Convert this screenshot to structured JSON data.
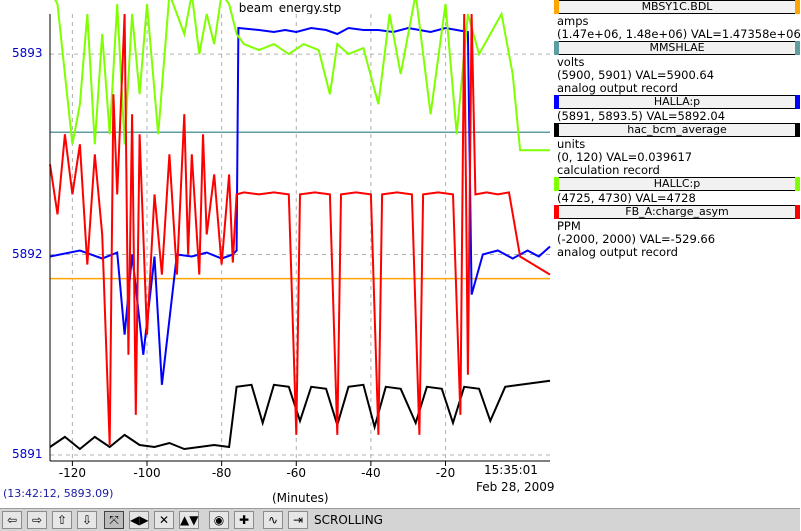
{
  "window": {
    "title": "beam_energy.stp"
  },
  "chart_data": {
    "type": "line",
    "title": "beam_energy.stp",
    "xlabel": "(Minutes)",
    "ylabel": "",
    "x_ticks": [
      "-120",
      "-100",
      "-80",
      "-60",
      "-40",
      "-20"
    ],
    "xlim": [
      -126,
      8
    ],
    "y_ticks": [
      "5891",
      "5892",
      "5893"
    ],
    "ylim": [
      5890.97,
      5893.2
    ],
    "end_time": "15:35:01",
    "end_date": "Feb 28, 2009",
    "grid": true,
    "legend_placement": "right",
    "series": [
      {
        "name": "MBSY1C.BDL",
        "color": "#ffa500",
        "units": "amps",
        "range": "(1.47e+06, 1.48e+06)",
        "value": "1.47358e+06",
        "points": [
          [
            -126,
            5891.88
          ],
          [
            8,
            5891.88
          ]
        ]
      },
      {
        "name": "MMSHLAE",
        "color": "#5f9ea0",
        "units": "volts",
        "range": "(5900, 5901)",
        "value": "5900.64",
        "points": [
          [
            -126,
            5892.61
          ],
          [
            8,
            5892.61
          ]
        ]
      },
      {
        "name": "HALLA:p",
        "color": "#0000ff",
        "units": "",
        "range": "(5891, 5893.5)",
        "value": "5892.04",
        "points": [
          [
            -126,
            5891.99
          ],
          [
            -118,
            5892.02
          ],
          [
            -112,
            5891.98
          ],
          [
            -108,
            5892.01
          ],
          [
            -106,
            5891.6
          ],
          [
            -104,
            5892.0
          ],
          [
            -101,
            5891.5
          ],
          [
            -98,
            5891.99
          ],
          [
            -96,
            5891.35
          ],
          [
            -92,
            5892.0
          ],
          [
            -88,
            5891.99
          ],
          [
            -84,
            5892.01
          ],
          [
            -80,
            5891.98
          ],
          [
            -77,
            5892.0
          ],
          [
            -76,
            5892.02
          ],
          [
            -75.5,
            5893.13
          ],
          [
            -70,
            5893.12
          ],
          [
            -66,
            5893.11
          ],
          [
            -63,
            5893.12
          ],
          [
            -60,
            5893.11
          ],
          [
            -56,
            5893.13
          ],
          [
            -52,
            5893.12
          ],
          [
            -49,
            5893.1
          ],
          [
            -46,
            5893.13
          ],
          [
            -42,
            5893.12
          ],
          [
            -38,
            5893.12
          ],
          [
            -34,
            5893.11
          ],
          [
            -30,
            5893.13
          ],
          [
            -27,
            5893.12
          ],
          [
            -24,
            5893.11
          ],
          [
            -22,
            5893.12
          ],
          [
            -20,
            5893.13
          ],
          [
            -17,
            5893.12
          ],
          [
            -14,
            5893.11
          ],
          [
            -13,
            5891.8
          ],
          [
            -10,
            5892.0
          ],
          [
            -6,
            5892.02
          ],
          [
            -2,
            5891.98
          ],
          [
            2,
            5892.02
          ],
          [
            5,
            5891.99
          ],
          [
            8,
            5892.04
          ]
        ]
      },
      {
        "name": "hac_bcm_average",
        "color": "#000000",
        "units": "units",
        "range": "(0, 120)",
        "value": "0.039617",
        "description": "calculation record",
        "points": [
          [
            -126,
            5891.04
          ],
          [
            -122,
            5891.09
          ],
          [
            -118,
            5891.03
          ],
          [
            -114,
            5891.09
          ],
          [
            -110,
            5891.04
          ],
          [
            -106,
            5891.1
          ],
          [
            -102,
            5891.05
          ],
          [
            -98,
            5891.04
          ],
          [
            -94,
            5891.06
          ],
          [
            -90,
            5891.03
          ],
          [
            -86,
            5891.04
          ],
          [
            -82,
            5891.05
          ],
          [
            -78,
            5891.04
          ],
          [
            -76,
            5891.34
          ],
          [
            -72,
            5891.35
          ],
          [
            -69,
            5891.16
          ],
          [
            -66,
            5891.35
          ],
          [
            -62,
            5891.34
          ],
          [
            -59,
            5891.17
          ],
          [
            -56,
            5891.34
          ],
          [
            -52,
            5891.33
          ],
          [
            -49,
            5891.15
          ],
          [
            -46,
            5891.34
          ],
          [
            -42,
            5891.35
          ],
          [
            -39,
            5891.14
          ],
          [
            -36,
            5891.34
          ],
          [
            -32,
            5891.33
          ],
          [
            -28,
            5891.16
          ],
          [
            -25,
            5891.34
          ],
          [
            -21,
            5891.33
          ],
          [
            -18,
            5891.16
          ],
          [
            -15,
            5891.34
          ],
          [
            -11,
            5891.33
          ],
          [
            -8,
            5891.17
          ],
          [
            -4,
            5891.34
          ],
          [
            0,
            5891.35
          ],
          [
            4,
            5891.36
          ],
          [
            8,
            5891.37
          ]
        ]
      },
      {
        "name": "HALLC:p",
        "color": "#7fff00",
        "units": "",
        "range": "(4725, 4730)",
        "value": "4728",
        "points": [
          [
            -126,
            5893.32
          ],
          [
            -124,
            5893.25
          ],
          [
            -122,
            5892.9
          ],
          [
            -120,
            5892.55
          ],
          [
            -118,
            5892.75
          ],
          [
            -116,
            5893.2
          ],
          [
            -114,
            5892.55
          ],
          [
            -112,
            5893.1
          ],
          [
            -110,
            5892.6
          ],
          [
            -108,
            5893.25
          ],
          [
            -106,
            5892.55
          ],
          [
            -104,
            5893.2
          ],
          [
            -102,
            5892.8
          ],
          [
            -100,
            5893.25
          ],
          [
            -97,
            5892.6
          ],
          [
            -94,
            5893.3
          ],
          [
            -92,
            5893.2
          ],
          [
            -90,
            5893.1
          ],
          [
            -88,
            5893.3
          ],
          [
            -86,
            5893.0
          ],
          [
            -84,
            5893.2
          ],
          [
            -82,
            5893.05
          ],
          [
            -80,
            5893.3
          ],
          [
            -78,
            5893.25
          ],
          [
            -76,
            5893.1
          ],
          [
            -74,
            5893.05
          ],
          [
            -70,
            5893.02
          ],
          [
            -66,
            5893.05
          ],
          [
            -62,
            5893.0
          ],
          [
            -58,
            5893.05
          ],
          [
            -54,
            5893.02
          ],
          [
            -51,
            5892.8
          ],
          [
            -49,
            5893.05
          ],
          [
            -46,
            5893.0
          ],
          [
            -42,
            5893.03
          ],
          [
            -38,
            5892.75
          ],
          [
            -35,
            5893.2
          ],
          [
            -32,
            5892.9
          ],
          [
            -28,
            5893.3
          ],
          [
            -24,
            5892.7
          ],
          [
            -20,
            5893.25
          ],
          [
            -17,
            5892.6
          ],
          [
            -14,
            5893.2
          ],
          [
            -11,
            5893.0
          ],
          [
            -8,
            5893.1
          ],
          [
            -5,
            5893.2
          ],
          [
            -2,
            5892.9
          ],
          [
            0,
            5892.52
          ],
          [
            8,
            5892.52
          ]
        ]
      },
      {
        "name": "FB_A:charge_asym",
        "color": "#ff0000",
        "units": "PPM",
        "range": "(-2000, 2000)",
        "value": "-529.66",
        "description": "analog output record",
        "points": [
          [
            -126,
            5892.45
          ],
          [
            -124,
            5892.2
          ],
          [
            -122,
            5892.6
          ],
          [
            -120,
            5892.3
          ],
          [
            -118,
            5892.55
          ],
          [
            -116,
            5891.95
          ],
          [
            -114,
            5892.5
          ],
          [
            -112,
            5892.1
          ],
          [
            -110,
            5891.05
          ],
          [
            -109,
            5892.8
          ],
          [
            -108,
            5892.3
          ],
          [
            -106,
            5893.2
          ],
          [
            -105,
            5891.5
          ],
          [
            -104,
            5892.7
          ],
          [
            -103,
            5891.2
          ],
          [
            -102,
            5892.6
          ],
          [
            -100,
            5891.6
          ],
          [
            -98,
            5892.3
          ],
          [
            -96,
            5891.9
          ],
          [
            -94,
            5892.5
          ],
          [
            -92,
            5891.9
          ],
          [
            -90,
            5892.7
          ],
          [
            -89,
            5892.0
          ],
          [
            -88,
            5892.5
          ],
          [
            -86,
            5891.9
          ],
          [
            -85,
            5892.6
          ],
          [
            -84,
            5892.1
          ],
          [
            -82,
            5892.4
          ],
          [
            -80,
            5891.95
          ],
          [
            -78,
            5892.4
          ],
          [
            -77,
            5891.96
          ],
          [
            -76,
            5892.3
          ],
          [
            -74,
            5892.31
          ],
          [
            -70,
            5892.3
          ],
          [
            -66,
            5892.31
          ],
          [
            -62,
            5892.3
          ],
          [
            -60,
            5891.1
          ],
          [
            -59,
            5892.3
          ],
          [
            -55,
            5892.31
          ],
          [
            -51,
            5892.3
          ],
          [
            -49,
            5891.1
          ],
          [
            -48,
            5892.3
          ],
          [
            -44,
            5892.31
          ],
          [
            -40,
            5892.3
          ],
          [
            -38,
            5891.1
          ],
          [
            -37,
            5892.3
          ],
          [
            -33,
            5892.31
          ],
          [
            -29,
            5892.3
          ],
          [
            -27,
            5891.1
          ],
          [
            -26,
            5892.3
          ],
          [
            -22,
            5892.31
          ],
          [
            -18,
            5892.3
          ],
          [
            -16,
            5891.2
          ],
          [
            -15,
            5893.2
          ],
          [
            -14,
            5891.4
          ],
          [
            -13,
            5893.2
          ],
          [
            -12,
            5892.3
          ],
          [
            -9,
            5892.31
          ],
          [
            -6,
            5892.3
          ],
          [
            -3,
            5892.31
          ],
          [
            0,
            5891.99
          ],
          [
            8,
            5891.9
          ]
        ]
      }
    ]
  },
  "legend": [
    {
      "name": "MBSY1C.BDL",
      "color": "#ffa500",
      "lines": [
        "amps",
        "(1.47e+06, 1.48e+06)  VAL=1.47358e+06"
      ]
    },
    {
      "name": "MMSHLAE",
      "color": "#5f9ea0",
      "lines": [
        "volts",
        "(5900, 5901)  VAL=5900.64",
        "analog output record"
      ]
    },
    {
      "name": "HALLA:p",
      "color": "#0000ff",
      "lines": [
        "(5891, 5893.5)  VAL=5892.04"
      ]
    },
    {
      "name": "hac_bcm_average",
      "color": "#000000",
      "lines": [
        "units",
        "(0, 120)  VAL=0.039617",
        "calculation record"
      ]
    },
    {
      "name": "HALLC:p",
      "color": "#7fff00",
      "lines": [
        "(4725, 4730)  VAL=4728"
      ]
    },
    {
      "name": "FB_A:charge_asym",
      "color": "#ff0000",
      "lines": [
        "PPM",
        "(-2000, 2000)  VAL=-529.66",
        "analog output record"
      ]
    }
  ],
  "cursor_readout": "(13:42:12, 5893.09)",
  "toolbar": {
    "mode_label": "SCROLLING",
    "buttons": [
      {
        "icon": "arrow-left-icon",
        "glyph": "⇦"
      },
      {
        "icon": "arrow-right-icon",
        "glyph": "⇨"
      },
      {
        "icon": "arrow-up-icon",
        "glyph": "⇧"
      },
      {
        "icon": "arrow-down-icon",
        "glyph": "⇩"
      },
      {
        "icon": "zoom-in-both-icon",
        "glyph": "⤧"
      },
      {
        "icon": "zoom-horizontal-icon",
        "glyph": "◀▶"
      },
      {
        "icon": "zoom-out-both-icon",
        "glyph": "✕"
      },
      {
        "icon": "zoom-vertical-icon",
        "glyph": "▲▼"
      },
      {
        "icon": "stop-icon",
        "glyph": "◉"
      },
      {
        "icon": "add-icon",
        "glyph": "✚"
      },
      {
        "icon": "graph-icon",
        "glyph": "∿"
      },
      {
        "icon": "scroll-mode-icon",
        "glyph": "⇥"
      }
    ]
  }
}
